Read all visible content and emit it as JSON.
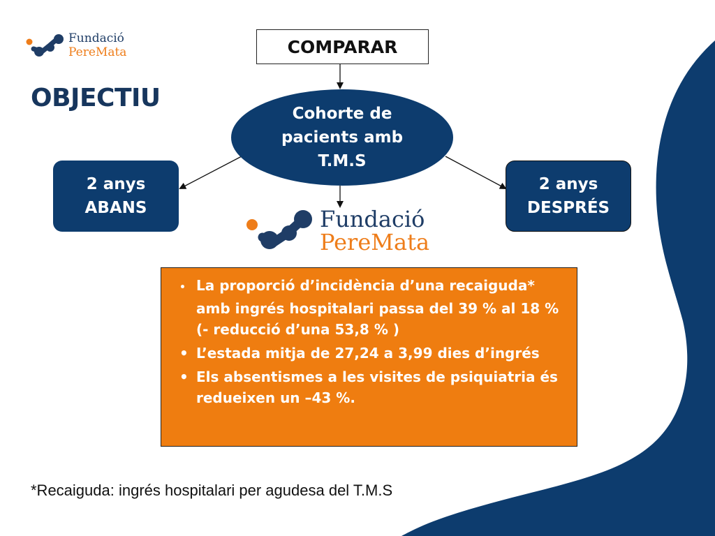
{
  "header": {
    "logo_line1": "Fundació",
    "logo_line2": "PereMata",
    "title": "OBJECTIU"
  },
  "diagram": {
    "compare_label": "COMPARAR",
    "center_lines": [
      "Cohorte de",
      "pacients amb",
      "T.M.S"
    ],
    "before_lines": [
      "2 anys",
      "ABANS"
    ],
    "after_lines": [
      "2 anys",
      "DESPRÉS"
    ],
    "logo_line1": "Fundació",
    "logo_line2": "PereMata"
  },
  "results": {
    "items": [
      {
        "bullet": "•",
        "text": "La proporció d’incidència d’una recaiguda* amb  ingrés hospitalari passa del 39 % al 18 % (- reducció d’una 53,8 % )"
      },
      {
        "bullet": "•",
        "text": "L’estada mitja de 27,24 a 3,99 dies d’ingrés"
      },
      {
        "bullet": "•",
        "text": "Els absentismes a les visites de psiquiatria és redueixen un –43 %."
      }
    ]
  },
  "footnote": "*Recaiguda: ingrés hospitalari per agudesa del T.M.S",
  "colors": {
    "navy": "#0d3c6e",
    "orange": "#ef7d10",
    "title": "#17365d"
  }
}
